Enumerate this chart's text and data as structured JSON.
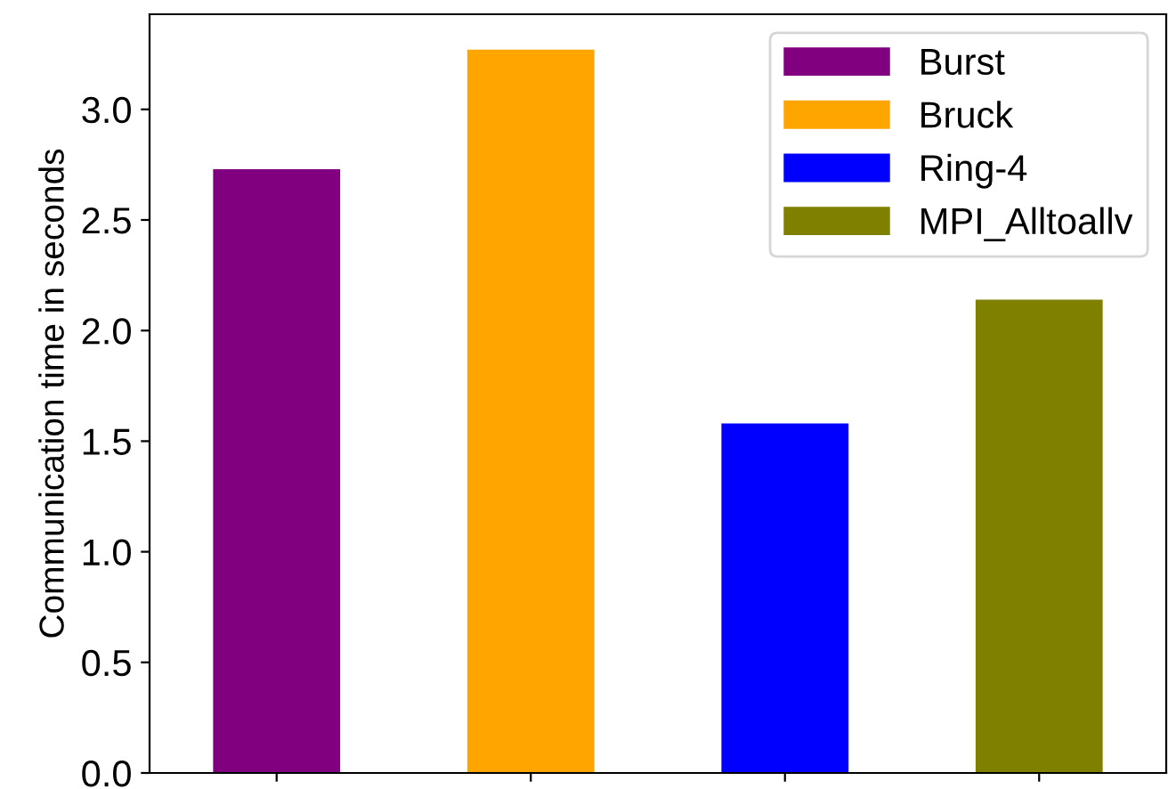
{
  "chart_data": {
    "type": "bar",
    "ylabel": "Communication time in seconds",
    "categories": [
      null,
      null,
      null,
      null
    ],
    "series": [
      {
        "name": "Burst",
        "color": "#800080",
        "values": [
          2.73,
          null,
          null,
          null
        ]
      },
      {
        "name": "Bruck",
        "color": "#ffa500",
        "values": [
          null,
          3.27,
          null,
          null
        ]
      },
      {
        "name": "Ring-4",
        "color": "#0000ff",
        "values": [
          null,
          null,
          1.58,
          null
        ]
      },
      {
        "name": "MPI_Alltoallv",
        "color": "#808000",
        "values": [
          null,
          null,
          null,
          2.14
        ]
      }
    ],
    "ylim": [
      0,
      3.43
    ],
    "yticks": [
      {
        "value": 0,
        "label": "0.0"
      },
      {
        "value": 0.5,
        "label": "0.5"
      },
      {
        "value": 1,
        "label": "1.0"
      },
      {
        "value": 1.5,
        "label": "1.5"
      },
      {
        "value": 2,
        "label": "2.0"
      },
      {
        "value": 2.5,
        "label": "2.5"
      },
      {
        "value": 3,
        "label": "3.0"
      }
    ],
    "legend": "top right",
    "grid": false
  }
}
